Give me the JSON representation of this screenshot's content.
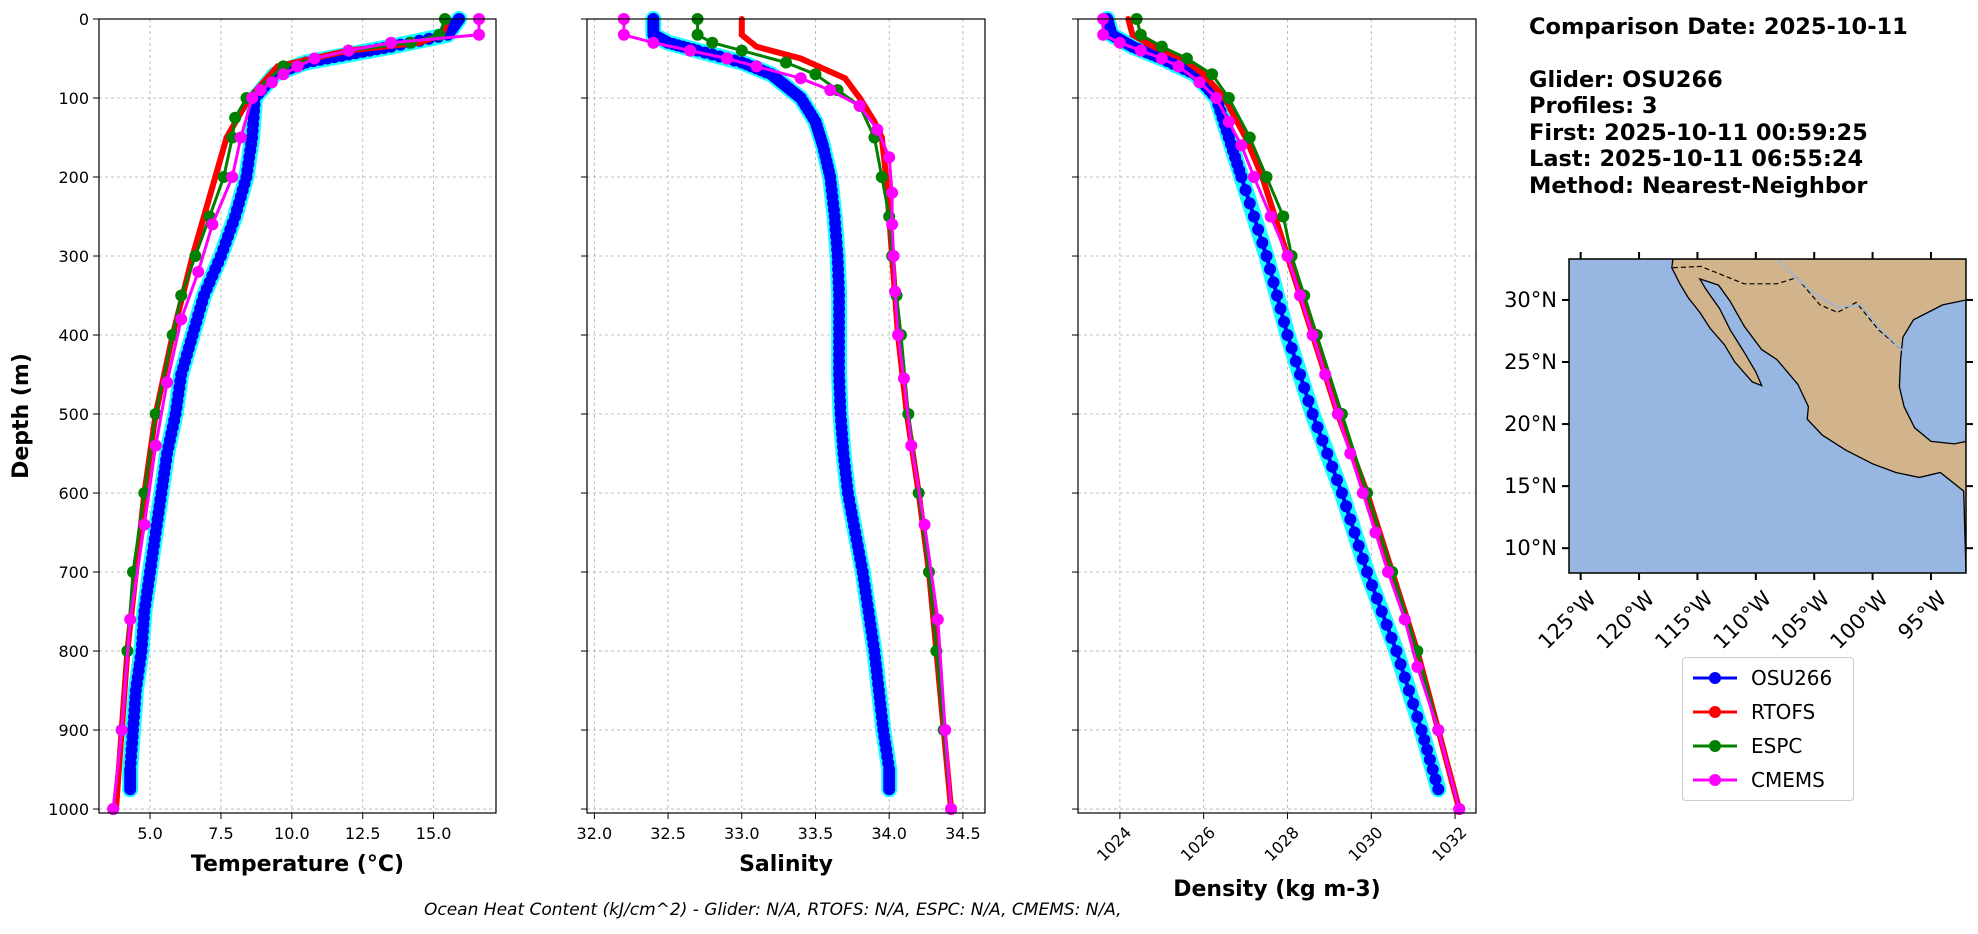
{
  "info": {
    "comparison_date": "Comparison Date: 2025-10-11",
    "glider": "Glider: OSU266",
    "profiles": "Profiles: 3",
    "first": "First: 2025-10-11 00:59:25",
    "last": "Last: 2025-10-11 06:55:24",
    "method": "Method: Nearest-Neighbor"
  },
  "footer": "Ocean Heat Content (kJ/cm^2) - Glider: N/A,  RTOFS: N/A,  ESPC: N/A,  CMEMS: N/A,",
  "colors": {
    "OSU266": "#0000ff",
    "RTOFS": "#ff0000",
    "ESPC": "#008000",
    "CMEMS": "#ff00ff",
    "glider_spread": "#00ffff",
    "ocean": "#97b6e1",
    "land": "#d2b48c"
  },
  "chart_data": [
    {
      "type": "line",
      "xlabel": "Temperature (°C)",
      "ylabel": "Depth (m)",
      "xlim": [
        3.2,
        17.2
      ],
      "ylim": [
        1005,
        0
      ],
      "xticks": [
        "5.0",
        "7.5",
        "10.0",
        "12.5",
        "15.0"
      ],
      "yticks": [
        "0",
        "100",
        "200",
        "300",
        "400",
        "500",
        "600",
        "700",
        "800",
        "900",
        "1000"
      ],
      "grid": true,
      "series": [
        {
          "name": "OSU266",
          "depth": [
            0,
            20,
            35,
            45,
            55,
            70,
            100,
            150,
            200,
            250,
            300,
            350,
            400,
            450,
            500,
            550,
            600,
            650,
            700,
            750,
            800,
            850,
            900,
            950,
            975
          ],
          "values": [
            15.9,
            15.5,
            13.5,
            12.0,
            10.5,
            9.4,
            8.7,
            8.6,
            8.4,
            8.0,
            7.5,
            6.9,
            6.5,
            6.1,
            5.9,
            5.6,
            5.4,
            5.2,
            5.0,
            4.8,
            4.7,
            4.5,
            4.4,
            4.3,
            4.3
          ]
        },
        {
          "name": "RTOFS",
          "depth": [
            0,
            20,
            30,
            40,
            60,
            100,
            150,
            200,
            300,
            400,
            500,
            600,
            700,
            800,
            900,
            1000
          ],
          "values": [
            15.5,
            15.3,
            14.5,
            12.0,
            9.5,
            8.5,
            7.7,
            7.3,
            6.5,
            5.8,
            5.2,
            4.8,
            4.5,
            4.2,
            4.0,
            3.8
          ]
        },
        {
          "name": "ESPC",
          "depth": [
            0,
            20,
            30,
            40,
            60,
            100,
            125,
            150,
            200,
            250,
            300,
            350,
            400,
            500,
            600,
            700,
            800,
            900,
            1000
          ],
          "values": [
            15.4,
            15.2,
            14.2,
            12.0,
            9.7,
            8.4,
            8.0,
            7.9,
            7.6,
            7.1,
            6.6,
            6.1,
            5.8,
            5.2,
            4.8,
            4.4,
            4.2,
            4.0,
            3.7
          ]
        },
        {
          "name": "CMEMS",
          "depth": [
            0,
            20,
            30,
            40,
            50,
            60,
            70,
            80,
            90,
            100,
            150,
            200,
            260,
            320,
            380,
            460,
            540,
            640,
            760,
            900,
            1000
          ],
          "values": [
            16.6,
            16.6,
            13.5,
            12.0,
            10.8,
            10.2,
            9.7,
            9.3,
            8.9,
            8.6,
            8.2,
            7.9,
            7.2,
            6.7,
            6.1,
            5.6,
            5.2,
            4.8,
            4.3,
            4.0,
            3.7
          ]
        }
      ]
    },
    {
      "type": "line",
      "xlabel": "Salinity",
      "ylabel": "",
      "xlim": [
        31.95,
        34.65
      ],
      "ylim": [
        1005,
        0
      ],
      "xticks": [
        "32.0",
        "32.5",
        "33.0",
        "33.5",
        "34.0",
        "34.5"
      ],
      "yticks": [
        "0",
        "100",
        "200",
        "300",
        "400",
        "500",
        "600",
        "700",
        "800",
        "900",
        "1000"
      ],
      "grid": true,
      "series": [
        {
          "name": "OSU266",
          "depth": [
            0,
            20,
            30,
            40,
            55,
            70,
            85,
            100,
            130,
            160,
            200,
            250,
            300,
            350,
            400,
            450,
            500,
            550,
            600,
            650,
            700,
            750,
            800,
            850,
            900,
            950,
            975
          ],
          "values": [
            32.4,
            32.4,
            32.5,
            32.7,
            33.0,
            33.2,
            33.3,
            33.4,
            33.5,
            33.55,
            33.6,
            33.63,
            33.65,
            33.66,
            33.66,
            33.66,
            33.67,
            33.69,
            33.72,
            33.77,
            33.82,
            33.86,
            33.9,
            33.93,
            33.96,
            34.0,
            34.0
          ]
        },
        {
          "name": "RTOFS",
          "depth": [
            0,
            20,
            35,
            50,
            75,
            100,
            130,
            150,
            200,
            300,
            400,
            500,
            600,
            700,
            800,
            900,
            1000
          ],
          "values": [
            33.0,
            33.0,
            33.1,
            33.4,
            33.7,
            33.8,
            33.9,
            33.95,
            33.98,
            34.02,
            34.06,
            34.12,
            34.2,
            34.27,
            34.32,
            34.37,
            34.42
          ]
        },
        {
          "name": "ESPC",
          "depth": [
            0,
            20,
            30,
            40,
            55,
            70,
            90,
            110,
            150,
            200,
            250,
            300,
            350,
            400,
            500,
            600,
            700,
            800,
            900,
            1000
          ],
          "values": [
            32.7,
            32.7,
            32.8,
            33.0,
            33.3,
            33.5,
            33.65,
            33.8,
            33.9,
            33.95,
            34.0,
            34.02,
            34.05,
            34.08,
            34.13,
            34.2,
            34.27,
            34.32,
            34.37,
            34.42
          ]
        },
        {
          "name": "CMEMS",
          "depth": [
            0,
            20,
            30,
            40,
            50,
            60,
            75,
            90,
            110,
            140,
            175,
            220,
            260,
            300,
            345,
            400,
            455,
            540,
            640,
            760,
            900,
            1000
          ],
          "values": [
            32.2,
            32.2,
            32.4,
            32.65,
            32.9,
            33.1,
            33.4,
            33.6,
            33.8,
            33.92,
            34.0,
            34.02,
            34.02,
            34.03,
            34.04,
            34.06,
            34.1,
            34.15,
            34.24,
            34.33,
            34.38,
            34.42
          ]
        }
      ]
    },
    {
      "type": "line",
      "xlabel": "Density (kg m-3)",
      "ylabel": "",
      "xlim": [
        1023.0,
        1032.5
      ],
      "ylim": [
        1005,
        0
      ],
      "xticks": [
        "1024",
        "1026",
        "1028",
        "1030",
        "1032"
      ],
      "yticks": [
        "0",
        "100",
        "200",
        "300",
        "400",
        "500",
        "600",
        "700",
        "800",
        "900",
        "1000"
      ],
      "grid": true,
      "series": [
        {
          "name": "OSU266",
          "depth": [
            0,
            20,
            35,
            50,
            70,
            100,
            150,
            200,
            300,
            400,
            500,
            600,
            700,
            800,
            900,
            975
          ],
          "values": [
            1023.7,
            1023.8,
            1024.3,
            1025.0,
            1025.8,
            1026.3,
            1026.6,
            1026.9,
            1027.5,
            1028.0,
            1028.6,
            1029.3,
            1029.9,
            1030.6,
            1031.2,
            1031.6
          ]
        },
        {
          "name": "RTOFS",
          "depth": [
            0,
            20,
            35,
            50,
            70,
            100,
            150,
            200,
            300,
            400,
            500,
            600,
            700,
            800,
            900,
            1000
          ],
          "values": [
            1024.2,
            1024.3,
            1024.8,
            1025.5,
            1026.0,
            1026.5,
            1027.0,
            1027.4,
            1028.0,
            1028.6,
            1029.2,
            1029.9,
            1030.5,
            1031.1,
            1031.6,
            1032.1
          ]
        },
        {
          "name": "ESPC",
          "depth": [
            0,
            20,
            35,
            50,
            70,
            100,
            150,
            200,
            250,
            300,
            350,
            400,
            500,
            600,
            700,
            800,
            900,
            1000
          ],
          "values": [
            1024.4,
            1024.5,
            1025.0,
            1025.6,
            1026.2,
            1026.6,
            1027.1,
            1027.5,
            1027.9,
            1028.1,
            1028.4,
            1028.7,
            1029.3,
            1029.9,
            1030.5,
            1031.1,
            1031.6,
            1032.1
          ]
        },
        {
          "name": "CMEMS",
          "depth": [
            0,
            20,
            30,
            40,
            50,
            60,
            80,
            100,
            130,
            160,
            200,
            250,
            300,
            350,
            400,
            450,
            500,
            550,
            600,
            650,
            700,
            760,
            820,
            900,
            1000
          ],
          "values": [
            1023.6,
            1023.6,
            1024.0,
            1024.5,
            1025.0,
            1025.4,
            1025.9,
            1026.3,
            1026.6,
            1026.9,
            1027.2,
            1027.6,
            1028.0,
            1028.3,
            1028.6,
            1028.9,
            1029.2,
            1029.5,
            1029.8,
            1030.1,
            1030.4,
            1030.8,
            1031.1,
            1031.6,
            1032.1
          ]
        }
      ]
    }
  ],
  "map": {
    "lon_ticks": [
      "125°W",
      "120°W",
      "115°W",
      "110°W",
      "105°W",
      "100°W",
      "95°W"
    ],
    "lon_values": [
      -125,
      -120,
      -115,
      -110,
      -105,
      -100,
      -95
    ],
    "lat_ticks": [
      "30°N",
      "25°N",
      "20°N",
      "15°N",
      "10°N"
    ],
    "lat_values": [
      30,
      25,
      20,
      15,
      10
    ],
    "lon_range": [
      -126,
      -92
    ],
    "lat_range": [
      8,
      33.3
    ]
  },
  "legend": [
    "OSU266",
    "RTOFS",
    "ESPC",
    "CMEMS"
  ]
}
